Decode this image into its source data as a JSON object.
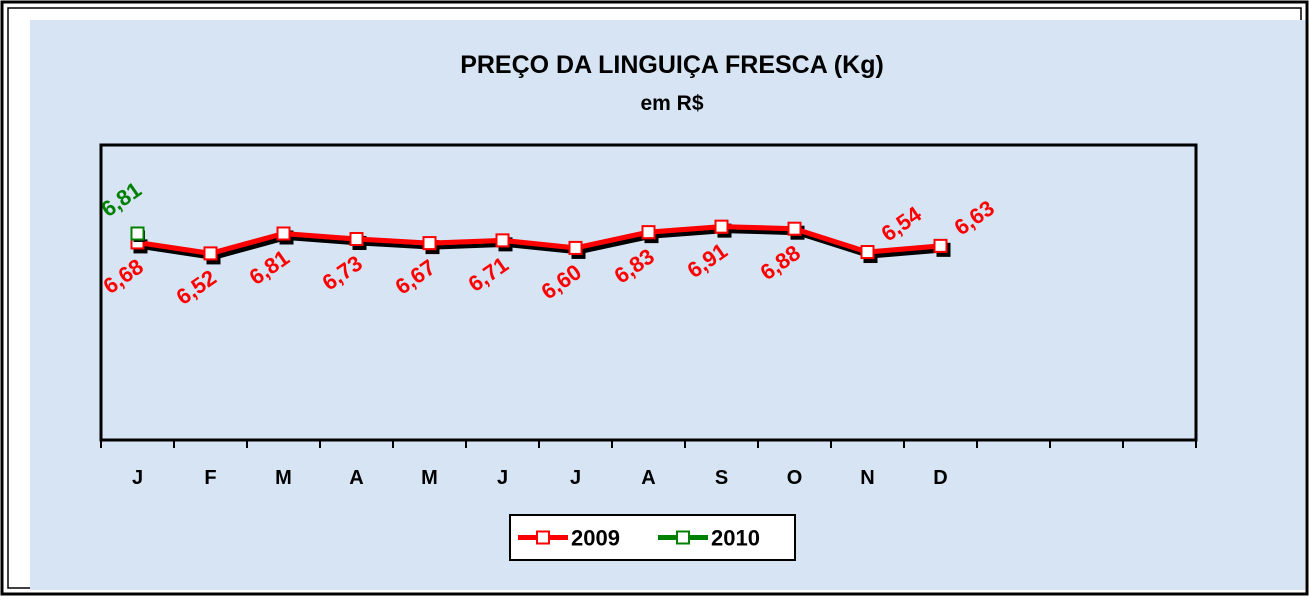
{
  "chart_data": {
    "type": "line",
    "title": "PREÇO DA LINGUIÇA FRESCA (Kg)",
    "subtitle": "em R$",
    "categories": [
      "J",
      "F",
      "M",
      "A",
      "M",
      "J",
      "J",
      "A",
      "S",
      "O",
      "N",
      "D",
      null,
      null,
      null
    ],
    "series": [
      {
        "name": "2009",
        "color": "#ff0000",
        "values": [
          6.68,
          6.52,
          6.81,
          6.73,
          6.67,
          6.71,
          6.6,
          6.83,
          6.91,
          6.88,
          6.54,
          6.63,
          null,
          null,
          null
        ],
        "value_labels": [
          "6,68",
          "6,52",
          "6,81",
          "6,73",
          "6,67",
          "6,71",
          "6,60",
          "6,83",
          "6,91",
          "6,88",
          "6,54",
          "6,63",
          null,
          null,
          null
        ]
      },
      {
        "name": "2010",
        "color": "#008000",
        "values": [
          6.81,
          null,
          null,
          null,
          null,
          null,
          null,
          null,
          null,
          null,
          null,
          null,
          null,
          null,
          null
        ],
        "value_labels": [
          "6,81",
          null,
          null,
          null,
          null,
          null,
          null,
          null,
          null,
          null,
          null,
          null,
          null,
          null,
          null
        ]
      }
    ],
    "ylim": [
      3.8,
      8.1
    ],
    "legend": "bottom"
  }
}
